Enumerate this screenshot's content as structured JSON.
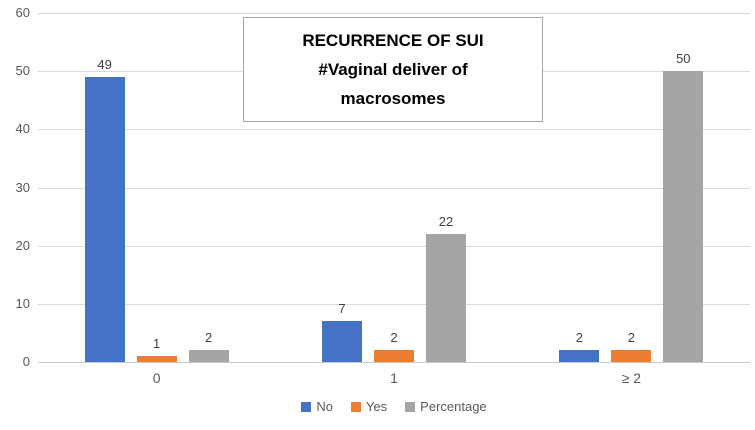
{
  "chart_data": {
    "type": "bar",
    "title_lines": [
      "RECURRENCE OF SUI",
      "#Vaginal deliver of",
      "macrosomes"
    ],
    "categories": [
      "0",
      "1",
      "≥ 2"
    ],
    "series": [
      {
        "name": "No",
        "color": "#4472C4",
        "values": [
          49,
          7,
          2
        ]
      },
      {
        "name": "Yes",
        "color": "#ED7D31",
        "values": [
          1,
          2,
          2
        ]
      },
      {
        "name": "Percentage",
        "color": "#A5A5A5",
        "values": [
          2,
          22,
          50
        ]
      }
    ],
    "y_ticks": [
      0,
      10,
      20,
      30,
      40,
      50,
      60
    ],
    "ylim": [
      0,
      60
    ],
    "xlabel": "",
    "ylabel": "",
    "grid": true,
    "legend_position": "bottom"
  },
  "colors": {
    "background": "#FFFFFF",
    "gridline": "#D9D9D9",
    "axis_text": "#595959",
    "data_label": "#404040",
    "title_text": "#000000",
    "title_box_border": "#A6A6A6"
  }
}
